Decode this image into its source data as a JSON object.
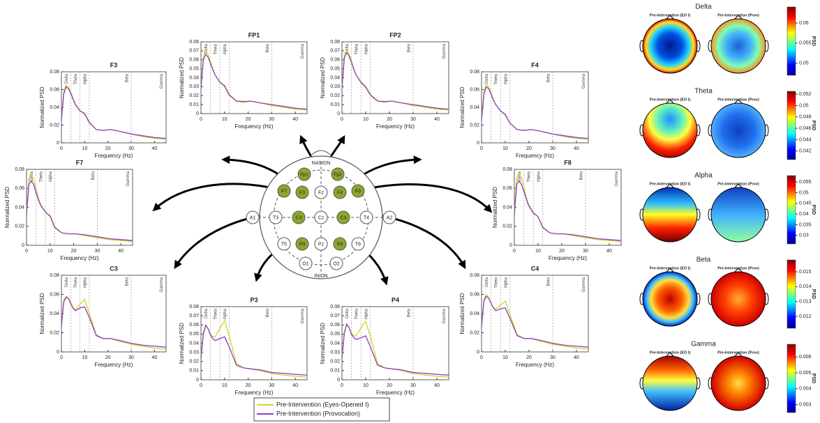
{
  "legend": [
    {
      "name": "Pre-Intervention (Eyes-Opened I)",
      "color": "#d4d424"
    },
    {
      "name": "Pre-Intervention (Provocation)",
      "color": "#8a3fc4"
    }
  ],
  "head": {
    "nasion": "NASION",
    "inion": "INION",
    "electrodes": [
      {
        "label": "Fp1",
        "active": true
      },
      {
        "label": "Fp2",
        "active": true
      },
      {
        "label": "F7",
        "active": true
      },
      {
        "label": "F3",
        "active": true
      },
      {
        "label": "Fz",
        "active": false
      },
      {
        "label": "F4",
        "active": true
      },
      {
        "label": "F8",
        "active": true
      },
      {
        "label": "A1",
        "active": false
      },
      {
        "label": "T3",
        "active": false
      },
      {
        "label": "C3",
        "active": true
      },
      {
        "label": "Cz",
        "active": false
      },
      {
        "label": "C4",
        "active": true
      },
      {
        "label": "T4",
        "active": false
      },
      {
        "label": "A2",
        "active": false
      },
      {
        "label": "T5",
        "active": false
      },
      {
        "label": "P3",
        "active": true
      },
      {
        "label": "Pz",
        "active": false
      },
      {
        "label": "P4",
        "active": true
      },
      {
        "label": "T6",
        "active": false
      },
      {
        "label": "O1",
        "active": false
      },
      {
        "label": "O2",
        "active": false
      }
    ]
  },
  "chart_data": [
    {
      "type": "line",
      "title": "F3",
      "xlabel": "Frequency (Hz)",
      "ylabel": "Normalized PSD",
      "x": [
        0,
        1,
        2,
        3,
        4,
        5,
        6,
        8,
        10,
        12,
        15,
        18,
        21,
        25,
        30,
        35,
        40,
        45
      ],
      "xlim": [
        0,
        45
      ],
      "xticks": [
        0,
        10,
        20,
        30,
        40
      ],
      "ylim": [
        0,
        0.08
      ],
      "yticks": [
        0,
        0.02,
        0.04,
        0.06,
        0.08
      ],
      "band_lines": [
        4,
        8,
        12,
        30
      ],
      "band_labels": [
        "Delta",
        "Theta",
        "Alpha",
        "Beta",
        "Gamma"
      ],
      "series": [
        {
          "values": [
            0.028,
            0.058,
            0.065,
            0.063,
            0.057,
            0.05,
            0.044,
            0.036,
            0.032,
            0.022,
            0.015,
            0.014,
            0.015,
            0.013,
            0.01,
            0.007,
            0.005,
            0.004
          ]
        },
        {
          "values": [
            0.025,
            0.055,
            0.063,
            0.061,
            0.056,
            0.049,
            0.043,
            0.036,
            0.033,
            0.023,
            0.015,
            0.014,
            0.015,
            0.013,
            0.01,
            0.008,
            0.006,
            0.005
          ]
        }
      ]
    },
    {
      "type": "line",
      "title": "FP1",
      "xlabel": "Frequency (Hz)",
      "ylabel": "Normalized PSD",
      "x": [
        0,
        1,
        2,
        3,
        4,
        5,
        6,
        8,
        10,
        12,
        15,
        18,
        21,
        25,
        30,
        35,
        40,
        45
      ],
      "xlim": [
        0,
        45
      ],
      "xticks": [
        0,
        10,
        20,
        30,
        40
      ],
      "ylim": [
        0,
        0.08
      ],
      "yticks": [
        0,
        0.01,
        0.02,
        0.03,
        0.04,
        0.05,
        0.06,
        0.07,
        0.08
      ],
      "band_lines": [
        4,
        8,
        12,
        30
      ],
      "band_labels": [
        "Delta",
        "Theta",
        "Alpha",
        "Beta",
        "Gamma"
      ],
      "series": [
        {
          "values": [
            0.03,
            0.064,
            0.07,
            0.066,
            0.058,
            0.05,
            0.043,
            0.035,
            0.03,
            0.02,
            0.014,
            0.014,
            0.014,
            0.012,
            0.009,
            0.007,
            0.005,
            0.004
          ]
        },
        {
          "values": [
            0.028,
            0.06,
            0.066,
            0.063,
            0.056,
            0.049,
            0.043,
            0.035,
            0.031,
            0.021,
            0.014,
            0.013,
            0.014,
            0.012,
            0.01,
            0.008,
            0.006,
            0.005
          ]
        }
      ]
    },
    {
      "type": "line",
      "title": "FP2",
      "xlabel": "Frequency (Hz)",
      "ylabel": "Normalized PSD",
      "x": [
        0,
        1,
        2,
        3,
        4,
        5,
        6,
        8,
        10,
        12,
        15,
        18,
        21,
        25,
        30,
        35,
        40,
        45
      ],
      "xlim": [
        0,
        45
      ],
      "xticks": [
        0,
        10,
        20,
        30,
        40
      ],
      "ylim": [
        0,
        0.08
      ],
      "yticks": [
        0,
        0.01,
        0.02,
        0.03,
        0.04,
        0.05,
        0.06,
        0.07,
        0.08
      ],
      "band_lines": [
        4,
        8,
        12,
        30
      ],
      "band_labels": [
        "Delta",
        "Theta",
        "Alpha",
        "Beta",
        "Gamma"
      ],
      "series": [
        {
          "values": [
            0.03,
            0.066,
            0.071,
            0.067,
            0.059,
            0.05,
            0.043,
            0.034,
            0.029,
            0.02,
            0.014,
            0.014,
            0.014,
            0.012,
            0.009,
            0.007,
            0.005,
            0.004
          ]
        },
        {
          "values": [
            0.028,
            0.062,
            0.068,
            0.064,
            0.057,
            0.049,
            0.043,
            0.035,
            0.03,
            0.021,
            0.014,
            0.013,
            0.014,
            0.012,
            0.01,
            0.008,
            0.006,
            0.005
          ]
        }
      ]
    },
    {
      "type": "line",
      "title": "F4",
      "xlabel": "Frequency (Hz)",
      "ylabel": "Normalized PSD",
      "x": [
        0,
        1,
        2,
        3,
        4,
        5,
        6,
        8,
        10,
        12,
        15,
        18,
        21,
        25,
        30,
        35,
        40,
        45
      ],
      "xlim": [
        0,
        45
      ],
      "xticks": [
        0,
        10,
        20,
        30,
        40
      ],
      "ylim": [
        0,
        0.08
      ],
      "yticks": [
        0,
        0.02,
        0.04,
        0.06,
        0.08
      ],
      "band_lines": [
        4,
        8,
        12,
        30
      ],
      "band_labels": [
        "Delta",
        "Theta",
        "Alpha",
        "Beta",
        "Gamma"
      ],
      "series": [
        {
          "values": [
            0.028,
            0.058,
            0.066,
            0.063,
            0.056,
            0.049,
            0.043,
            0.036,
            0.031,
            0.022,
            0.015,
            0.014,
            0.015,
            0.013,
            0.01,
            0.007,
            0.005,
            0.004
          ]
        },
        {
          "values": [
            0.025,
            0.055,
            0.063,
            0.061,
            0.055,
            0.048,
            0.043,
            0.036,
            0.032,
            0.022,
            0.015,
            0.014,
            0.015,
            0.013,
            0.01,
            0.008,
            0.006,
            0.005
          ]
        }
      ]
    },
    {
      "type": "line",
      "title": "F7",
      "xlabel": "Frequency (Hz)",
      "ylabel": "Normalized PSD",
      "x": [
        0,
        1,
        2,
        3,
        4,
        5,
        6,
        8,
        10,
        12,
        15,
        18,
        21,
        25,
        30,
        35,
        40,
        45
      ],
      "xlim": [
        0,
        45
      ],
      "xticks": [
        0,
        10,
        20,
        30,
        40
      ],
      "ylim": [
        0,
        0.08
      ],
      "yticks": [
        0,
        0.02,
        0.04,
        0.06,
        0.08
      ],
      "band_lines": [
        4,
        8,
        12,
        30
      ],
      "band_labels": [
        "Delta",
        "Theta",
        "Alpha",
        "Beta",
        "Gamma"
      ],
      "series": [
        {
          "values": [
            0.035,
            0.07,
            0.075,
            0.07,
            0.06,
            0.05,
            0.043,
            0.035,
            0.03,
            0.018,
            0.013,
            0.012,
            0.012,
            0.01,
            0.008,
            0.006,
            0.005,
            0.004
          ]
        },
        {
          "values": [
            0.032,
            0.064,
            0.068,
            0.064,
            0.056,
            0.048,
            0.042,
            0.035,
            0.031,
            0.019,
            0.013,
            0.012,
            0.012,
            0.011,
            0.009,
            0.007,
            0.006,
            0.005
          ]
        }
      ]
    },
    {
      "type": "line",
      "title": "F8",
      "xlabel": "Frequency (Hz)",
      "ylabel": "Normalized PSD",
      "x": [
        0,
        1,
        2,
        3,
        4,
        5,
        6,
        8,
        10,
        12,
        15,
        18,
        21,
        25,
        30,
        35,
        40,
        45
      ],
      "xlim": [
        0,
        45
      ],
      "xticks": [
        0,
        10,
        20,
        30,
        40
      ],
      "ylim": [
        0,
        0.08
      ],
      "yticks": [
        0,
        0.02,
        0.04,
        0.06,
        0.08
      ],
      "band_lines": [
        4,
        8,
        12,
        30
      ],
      "band_labels": [
        "Delta",
        "Theta",
        "Alpha",
        "Beta",
        "Gamma"
      ],
      "series": [
        {
          "values": [
            0.035,
            0.071,
            0.075,
            0.071,
            0.061,
            0.051,
            0.043,
            0.035,
            0.03,
            0.018,
            0.013,
            0.012,
            0.012,
            0.01,
            0.008,
            0.006,
            0.005,
            0.004
          ]
        },
        {
          "values": [
            0.032,
            0.064,
            0.068,
            0.064,
            0.057,
            0.049,
            0.042,
            0.034,
            0.03,
            0.019,
            0.013,
            0.012,
            0.012,
            0.011,
            0.009,
            0.007,
            0.006,
            0.005
          ]
        }
      ]
    },
    {
      "type": "line",
      "title": "C3",
      "xlabel": "Frequency (Hz)",
      "ylabel": "Normalized PSD",
      "x": [
        0,
        1,
        2,
        3,
        4,
        5,
        6,
        8,
        10,
        12,
        15,
        18,
        21,
        25,
        30,
        35,
        40,
        45
      ],
      "xlim": [
        0,
        45
      ],
      "xticks": [
        0,
        10,
        20,
        30,
        40
      ],
      "ylim": [
        0,
        0.08
      ],
      "yticks": [
        0,
        0.02,
        0.04,
        0.06,
        0.08
      ],
      "band_lines": [
        4,
        8,
        12,
        30
      ],
      "band_labels": [
        "Delta",
        "Theta",
        "Alpha",
        "Beta",
        "Gamma"
      ],
      "series": [
        {
          "values": [
            0.028,
            0.054,
            0.058,
            0.056,
            0.05,
            0.045,
            0.044,
            0.05,
            0.055,
            0.04,
            0.018,
            0.014,
            0.014,
            0.011,
            0.008,
            0.006,
            0.004,
            0.003
          ]
        },
        {
          "values": [
            0.026,
            0.052,
            0.057,
            0.056,
            0.051,
            0.046,
            0.043,
            0.046,
            0.047,
            0.036,
            0.017,
            0.014,
            0.014,
            0.012,
            0.009,
            0.007,
            0.006,
            0.005
          ]
        }
      ]
    },
    {
      "type": "line",
      "title": "P3",
      "xlabel": "Frequency (Hz)",
      "ylabel": "Normalized PSD",
      "x": [
        0,
        1,
        2,
        3,
        4,
        5,
        6,
        8,
        10,
        12,
        15,
        18,
        21,
        25,
        30,
        35,
        40,
        45
      ],
      "xlim": [
        0,
        45
      ],
      "xticks": [
        0,
        10,
        20,
        30,
        40
      ],
      "ylim": [
        0,
        0.08
      ],
      "yticks": [
        0,
        0.01,
        0.02,
        0.03,
        0.04,
        0.05,
        0.06,
        0.07,
        0.08
      ],
      "band_lines": [
        4,
        8,
        12,
        30
      ],
      "band_labels": [
        "Delta",
        "Theta",
        "Alpha",
        "Beta",
        "Gamma"
      ],
      "series": [
        {
          "values": [
            0.025,
            0.052,
            0.059,
            0.056,
            0.05,
            0.047,
            0.047,
            0.056,
            0.065,
            0.048,
            0.018,
            0.013,
            0.012,
            0.01,
            0.007,
            0.005,
            0.004,
            0.003
          ]
        },
        {
          "values": [
            0.023,
            0.05,
            0.06,
            0.056,
            0.049,
            0.045,
            0.043,
            0.045,
            0.047,
            0.036,
            0.016,
            0.013,
            0.012,
            0.011,
            0.008,
            0.007,
            0.006,
            0.005
          ]
        }
      ]
    },
    {
      "type": "line",
      "title": "P4",
      "xlabel": "Frequency (Hz)",
      "ylabel": "Normalized PSD",
      "x": [
        0,
        1,
        2,
        3,
        4,
        5,
        6,
        8,
        10,
        12,
        15,
        18,
        21,
        25,
        30,
        35,
        40,
        45
      ],
      "xlim": [
        0,
        45
      ],
      "xticks": [
        0,
        10,
        20,
        30,
        40
      ],
      "ylim": [
        0,
        0.08
      ],
      "yticks": [
        0,
        0.01,
        0.02,
        0.03,
        0.04,
        0.05,
        0.06,
        0.07,
        0.08
      ],
      "band_lines": [
        4,
        8,
        12,
        30
      ],
      "band_labels": [
        "Delta",
        "Theta",
        "Alpha",
        "Beta",
        "Gamma"
      ],
      "series": [
        {
          "values": [
            0.025,
            0.053,
            0.06,
            0.057,
            0.051,
            0.048,
            0.048,
            0.057,
            0.064,
            0.047,
            0.018,
            0.013,
            0.012,
            0.01,
            0.007,
            0.005,
            0.004,
            0.003
          ]
        },
        {
          "values": [
            0.023,
            0.051,
            0.061,
            0.057,
            0.05,
            0.046,
            0.044,
            0.046,
            0.048,
            0.036,
            0.016,
            0.013,
            0.012,
            0.011,
            0.008,
            0.007,
            0.006,
            0.005
          ]
        }
      ]
    },
    {
      "type": "line",
      "title": "C4",
      "xlabel": "Frequency (Hz)",
      "ylabel": "Normalized PSD",
      "x": [
        0,
        1,
        2,
        3,
        4,
        5,
        6,
        8,
        10,
        12,
        15,
        18,
        21,
        25,
        30,
        35,
        40,
        45
      ],
      "xlim": [
        0,
        45
      ],
      "xticks": [
        0,
        10,
        20,
        30,
        40
      ],
      "ylim": [
        0,
        0.08
      ],
      "yticks": [
        0,
        0.02,
        0.04,
        0.06,
        0.08
      ],
      "band_lines": [
        4,
        8,
        12,
        30
      ],
      "band_labels": [
        "Delta",
        "Theta",
        "Alpha",
        "Beta",
        "Gamma"
      ],
      "series": [
        {
          "values": [
            0.028,
            0.055,
            0.06,
            0.057,
            0.051,
            0.046,
            0.045,
            0.049,
            0.053,
            0.039,
            0.018,
            0.014,
            0.014,
            0.011,
            0.008,
            0.006,
            0.004,
            0.003
          ]
        },
        {
          "values": [
            0.026,
            0.053,
            0.058,
            0.056,
            0.051,
            0.046,
            0.043,
            0.045,
            0.046,
            0.035,
            0.017,
            0.014,
            0.014,
            0.012,
            0.009,
            0.007,
            0.006,
            0.005
          ]
        }
      ]
    },
    {
      "type": "topomap",
      "title": "Delta",
      "panels": [
        "Pre-Intervention (EO I)",
        "Pre-Intervention (Prov)"
      ],
      "colorbar_label": "PSD",
      "clim": [
        0.047,
        0.064
      ],
      "cticks": [
        0.05,
        0.055,
        0.06
      ]
    },
    {
      "type": "topomap",
      "title": "Theta",
      "panels": [
        "Pre-Intervention (EO I)",
        "Pre-Intervention (Prov)"
      ],
      "colorbar_label": "PSD",
      "clim": [
        0.0405,
        0.0525
      ],
      "cticks": [
        0.042,
        0.044,
        0.046,
        0.048,
        0.05,
        0.052
      ]
    },
    {
      "type": "topomap",
      "title": "Alpha",
      "panels": [
        "Pre-Intervention (EO I)",
        "Pre-Intervention (Prov)"
      ],
      "colorbar_label": "PSD",
      "clim": [
        0.026,
        0.058
      ],
      "cticks": [
        0.03,
        0.035,
        0.04,
        0.045,
        0.05,
        0.055
      ]
    },
    {
      "type": "topomap",
      "title": "Beta",
      "panels": [
        "Pre-Intervention (EO I)",
        "Pre-Intervention (Prov)"
      ],
      "colorbar_label": "PSD",
      "clim": [
        0.0112,
        0.0158
      ],
      "cticks": [
        0.012,
        0.013,
        0.014,
        0.015
      ]
    },
    {
      "type": "topomap",
      "title": "Gamma",
      "panels": [
        "Pre-Intervention (EO I)",
        "Pre-Intervention (Prov)"
      ],
      "colorbar_label": "PSD",
      "clim": [
        0.0025,
        0.0068
      ],
      "cticks": [
        0.003,
        0.004,
        0.005,
        0.006
      ]
    }
  ]
}
